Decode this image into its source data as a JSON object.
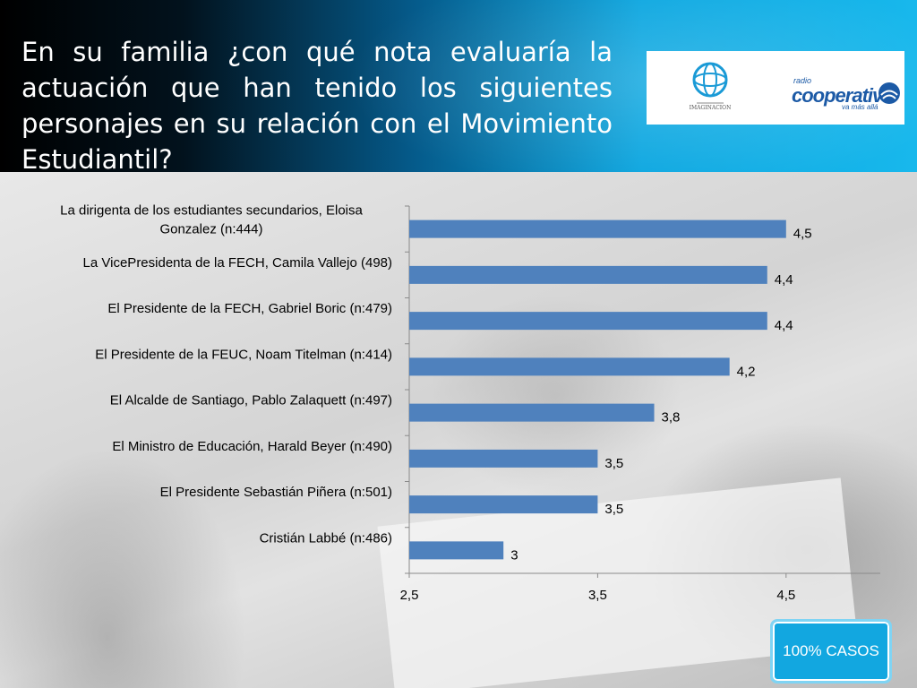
{
  "header": {
    "title": "En su familia ¿con qué nota evaluaría la actuación que han tenido los siguientes personajes   en su relación con el Movimiento Estudiantil?"
  },
  "logos": {
    "imaginacion_text": "IMAGINACION",
    "cooperativa_radio": "radio",
    "cooperativa_name": "cooperativa",
    "cooperativa_tagline": "va más allá"
  },
  "badge": {
    "label": "100% CASOS"
  },
  "colors": {
    "bar": "#4f81bd",
    "header_accent": "#0aa6e0"
  },
  "chart_data": {
    "type": "bar",
    "orientation": "horizontal",
    "categories": [
      [
        "La dirigenta de los estudiantes secundarios, Eloisa",
        "Gonzalez (n:444)"
      ],
      [
        "La VicePresidenta de la FECH, Camila Vallejo (498)"
      ],
      [
        "El Presidente de la FECH, Gabriel Boric (n:479)"
      ],
      [
        "El Presidente de la FEUC, Noam Titelman (n:414)"
      ],
      [
        "El Alcalde de Santiago, Pablo Zalaquett (n:497)"
      ],
      [
        "El Ministro de Educación, Harald Beyer (n:490)"
      ],
      [
        "El Presidente Sebastián Piñera (n:501)"
      ],
      [
        "Cristián Labbé (n:486)"
      ]
    ],
    "values": [
      4.5,
      4.4,
      4.4,
      4.2,
      3.8,
      3.5,
      3.5,
      3.0
    ],
    "value_labels": [
      "4,5",
      "4,4",
      "4,4",
      "4,2",
      "3,8",
      "3,5",
      "3,5",
      "3"
    ],
    "xlim": [
      2.5,
      5.0
    ],
    "xticks": [
      2.5,
      3.5,
      4.5
    ],
    "xtick_labels": [
      "2,5",
      "3,5",
      "4,5"
    ],
    "grid": false,
    "legend": "none"
  }
}
